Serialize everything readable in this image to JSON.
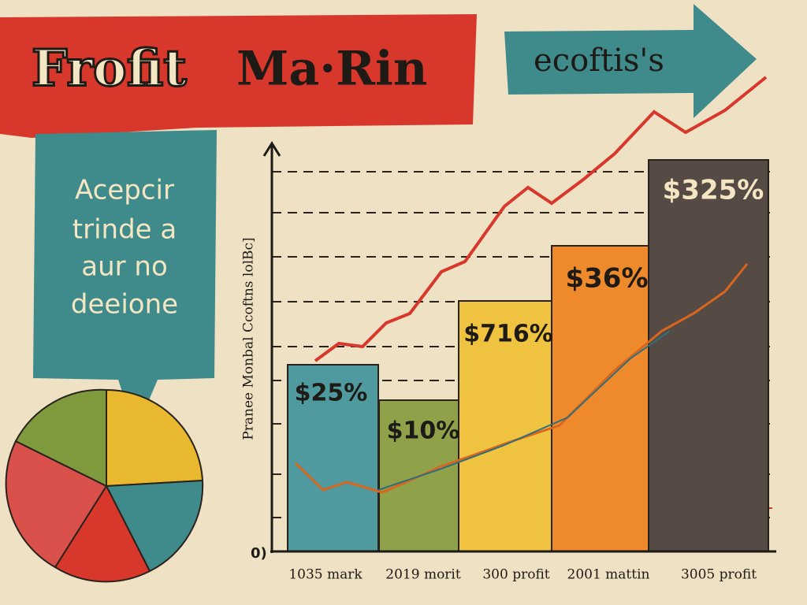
{
  "header": {
    "title_part1": "Frofit",
    "title_part2": "Ma·Rin",
    "arrow_text": "ecoftis's"
  },
  "bubble": {
    "lines": [
      "Acepcir",
      "trinde a",
      "aur no",
      "deeione"
    ]
  },
  "chart": {
    "y_axis_label": "Pranee Monbal Ccoftns  lolBc]",
    "origin_label": "0)",
    "bar_labels": [
      "$25%",
      "$10%",
      "$716%",
      "$36%",
      "$325%"
    ],
    "x_labels": [
      "1035 mark",
      "2019 morit",
      "300 profit",
      "2001 mattin",
      "3005 profit"
    ]
  }
}
